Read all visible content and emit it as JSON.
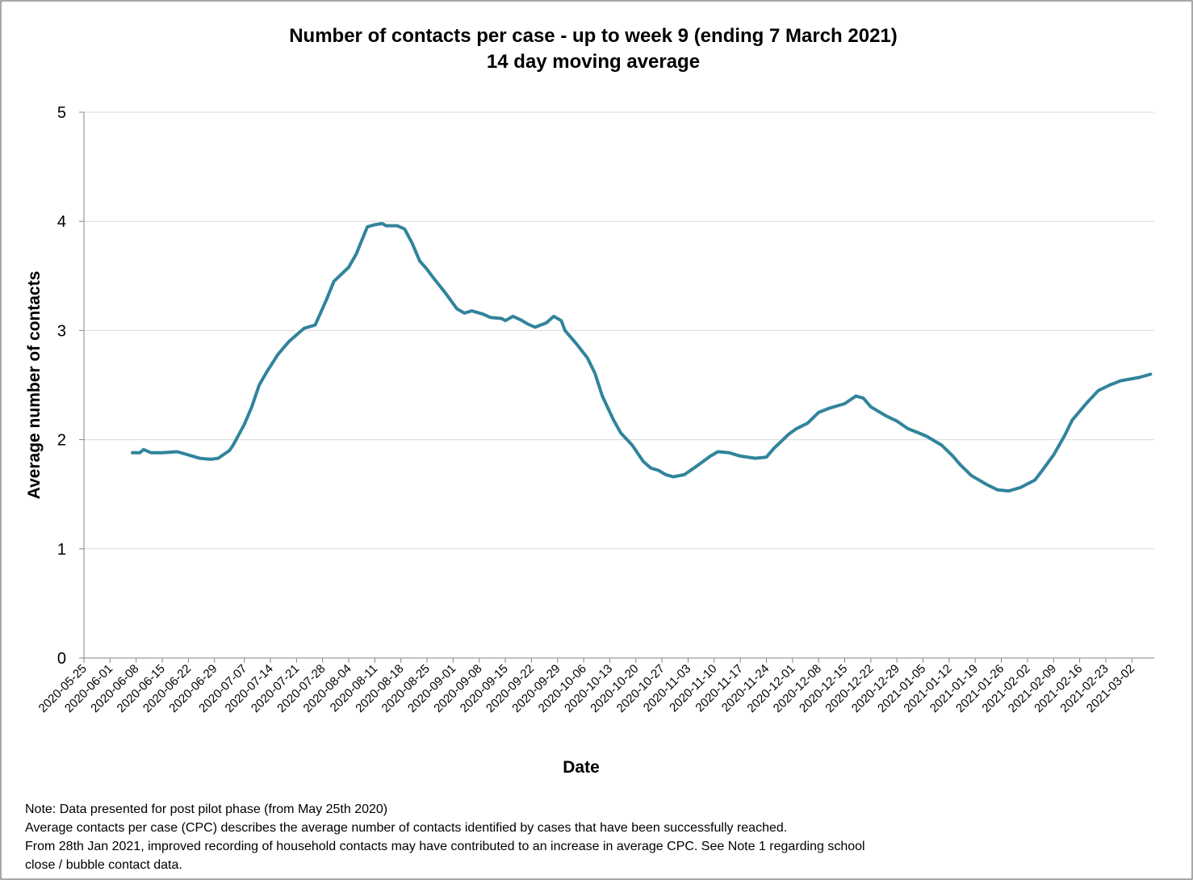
{
  "chart_data": {
    "type": "line",
    "title": "Number of contacts per case - up to week 9 (ending 7 March 2021)",
    "subtitle": "14 day moving average",
    "x_label": "Date",
    "y_label": "Average number of contacts",
    "notes": [
      "Note: Data presented  for post pilot phase (from May 25th 2020)",
      "Average contacts per case (CPC) describes the average number of contacts identified by cases that have been successfully reached.",
      "From 28th Jan 2021, improved recording of household contacts may have contributed to an increase in average CPC. See Note 1 regarding school",
      "close / bubble contact data."
    ],
    "x": [
      "2020-06-07",
      "2020-06-09",
      "2020-06-10",
      "2020-06-12",
      "2020-06-15",
      "2020-06-19",
      "2020-06-22",
      "2020-06-25",
      "2020-06-28",
      "2020-06-30",
      "2020-07-03",
      "2020-07-04",
      "2020-07-07",
      "2020-07-09",
      "2020-07-11",
      "2020-07-13",
      "2020-07-16",
      "2020-07-19",
      "2020-07-23",
      "2020-07-26",
      "2020-07-29",
      "2020-07-31",
      "2020-08-04",
      "2020-08-06",
      "2020-08-09",
      "2020-08-11",
      "2020-08-13",
      "2020-08-14",
      "2020-08-17",
      "2020-08-19",
      "2020-08-21",
      "2020-08-23",
      "2020-08-25",
      "2020-08-27",
      "2020-08-30",
      "2020-09-02",
      "2020-09-04",
      "2020-09-06",
      "2020-09-09",
      "2020-09-11",
      "2020-09-14",
      "2020-09-15",
      "2020-09-17",
      "2020-09-19",
      "2020-09-21",
      "2020-09-23",
      "2020-09-26",
      "2020-09-28",
      "2020-09-30",
      "2020-10-01",
      "2020-10-04",
      "2020-10-07",
      "2020-10-09",
      "2020-10-11",
      "2020-10-14",
      "2020-10-16",
      "2020-10-19",
      "2020-10-22",
      "2020-10-24",
      "2020-10-26",
      "2020-10-28",
      "2020-10-30",
      "2020-11-02",
      "2020-11-05",
      "2020-11-09",
      "2020-11-11",
      "2020-11-14",
      "2020-11-17",
      "2020-11-21",
      "2020-11-24",
      "2020-11-26",
      "2020-11-30",
      "2020-12-02",
      "2020-12-05",
      "2020-12-08",
      "2020-12-11",
      "2020-12-15",
      "2020-12-18",
      "2020-12-20",
      "2020-12-22",
      "2020-12-26",
      "2020-12-29",
      "2021-01-01",
      "2021-01-04",
      "2021-01-06",
      "2021-01-10",
      "2021-01-13",
      "2021-01-15",
      "2021-01-18",
      "2021-01-22",
      "2021-01-25",
      "2021-01-28",
      "2021-01-31",
      "2021-02-04",
      "2021-02-06",
      "2021-02-09",
      "2021-02-12",
      "2021-02-14",
      "2021-02-18",
      "2021-02-21",
      "2021-02-24",
      "2021-02-27",
      "2021-03-04",
      "2021-03-07"
    ],
    "series": [
      {
        "name": "14 day moving average",
        "color": "#31849b",
        "values": [
          1.88,
          1.88,
          1.91,
          1.88,
          1.88,
          1.89,
          1.86,
          1.83,
          1.82,
          1.83,
          1.9,
          1.95,
          2.14,
          2.3,
          2.5,
          2.62,
          2.78,
          2.9,
          3.02,
          3.05,
          3.28,
          3.45,
          3.58,
          3.7,
          3.95,
          3.97,
          3.98,
          3.96,
          3.96,
          3.93,
          3.8,
          3.64,
          3.56,
          3.47,
          3.34,
          3.2,
          3.16,
          3.18,
          3.15,
          3.12,
          3.11,
          3.09,
          3.13,
          3.1,
          3.06,
          3.03,
          3.07,
          3.13,
          3.09,
          3.0,
          2.88,
          2.75,
          2.61,
          2.4,
          2.18,
          2.06,
          1.95,
          1.8,
          1.74,
          1.72,
          1.68,
          1.66,
          1.68,
          1.75,
          1.85,
          1.89,
          1.88,
          1.85,
          1.83,
          1.84,
          1.92,
          2.05,
          2.1,
          2.15,
          2.25,
          2.29,
          2.33,
          2.4,
          2.38,
          2.3,
          2.22,
          2.17,
          2.1,
          2.06,
          2.03,
          1.95,
          1.85,
          1.77,
          1.67,
          1.59,
          1.54,
          1.53,
          1.56,
          1.63,
          1.72,
          1.86,
          2.04,
          2.18,
          2.34,
          2.45,
          2.5,
          2.54,
          2.57,
          2.6
        ]
      }
    ],
    "xlim": [
      "2020-05-25",
      "2021-03-08"
    ],
    "xticks": [
      "2020-05-25",
      "2020-06-01",
      "2020-06-08",
      "2020-06-15",
      "2020-06-22",
      "2020-06-29",
      "2020-07-07",
      "2020-07-14",
      "2020-07-21",
      "2020-07-28",
      "2020-08-04",
      "2020-08-11",
      "2020-08-18",
      "2020-08-25",
      "2020-09-01",
      "2020-09-08",
      "2020-09-15",
      "2020-09-22",
      "2020-09-29",
      "2020-10-06",
      "2020-10-13",
      "2020-10-20",
      "2020-10-27",
      "2020-11-03",
      "2020-11-10",
      "2020-11-17",
      "2020-11-24",
      "2020-12-01",
      "2020-12-08",
      "2020-12-15",
      "2020-12-22",
      "2020-12-29",
      "2021-01-05",
      "2021-01-12",
      "2021-01-19",
      "2021-01-26",
      "2021-02-02",
      "2021-02-09",
      "2021-02-16",
      "2021-02-23",
      "2021-03-02"
    ],
    "ylim": [
      0,
      5
    ],
    "yticks": [
      0,
      1,
      2,
      3,
      4,
      5
    ],
    "grid": true
  }
}
